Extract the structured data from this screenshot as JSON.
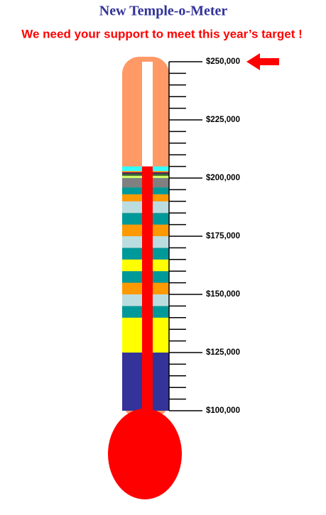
{
  "chart_data": {
    "type": "thermometer",
    "title": "New Temple-o-Meter",
    "subtitle": "We need your support  to meet this year’s target !",
    "value": 205000,
    "mercury_color": "#ff0000",
    "empty_color": "#ff9966",
    "target": 250000,
    "segments": [
      {
        "color": "#333399",
        "value": 25000
      },
      {
        "color": "#ffff00",
        "value": 15000
      },
      {
        "color": "#009999",
        "value": 5000
      },
      {
        "color": "#bbdde0",
        "value": 5000
      },
      {
        "color": "#ff9900",
        "value": 5000
      },
      {
        "color": "#009999",
        "value": 5000
      },
      {
        "color": "#ffff00",
        "value": 5000
      },
      {
        "color": "#009999",
        "value": 5000
      },
      {
        "color": "#bbdde0",
        "value": 5000
      },
      {
        "color": "#ff9900",
        "value": 5000
      },
      {
        "color": "#009999",
        "value": 5000
      },
      {
        "color": "#bbdde0",
        "value": 5000
      },
      {
        "color": "#ff9900",
        "value": 3000
      },
      {
        "color": "#009999",
        "value": 3000
      },
      {
        "color": "#808080",
        "value": 4000
      },
      {
        "color": "#ccff66",
        "value": 1000
      },
      {
        "color": "#336633",
        "value": 1000
      },
      {
        "color": "#660066",
        "value": 500
      },
      {
        "color": "#ff9900",
        "value": 500
      },
      {
        "color": "#33ffff",
        "value": 2000
      }
    ],
    "ylim": [
      100000,
      250000
    ],
    "yticks": [
      {
        "value": 100000,
        "label": "$100,000"
      },
      {
        "value": 125000,
        "label": "$125,000"
      },
      {
        "value": 150000,
        "label": "$150,000"
      },
      {
        "value": 175000,
        "label": "$175,000"
      },
      {
        "value": 200000,
        "label": "$200,000"
      },
      {
        "value": 225000,
        "label": "$225,000"
      },
      {
        "value": 250000,
        "label": "$250,000"
      }
    ],
    "yminorticks": [
      105000,
      110000,
      115000,
      120000,
      130000,
      135000,
      140000,
      145000,
      155000,
      160000,
      165000,
      170000,
      180000,
      185000,
      190000,
      195000,
      205000,
      210000,
      215000,
      220000,
      230000,
      235000,
      240000,
      245000
    ]
  }
}
